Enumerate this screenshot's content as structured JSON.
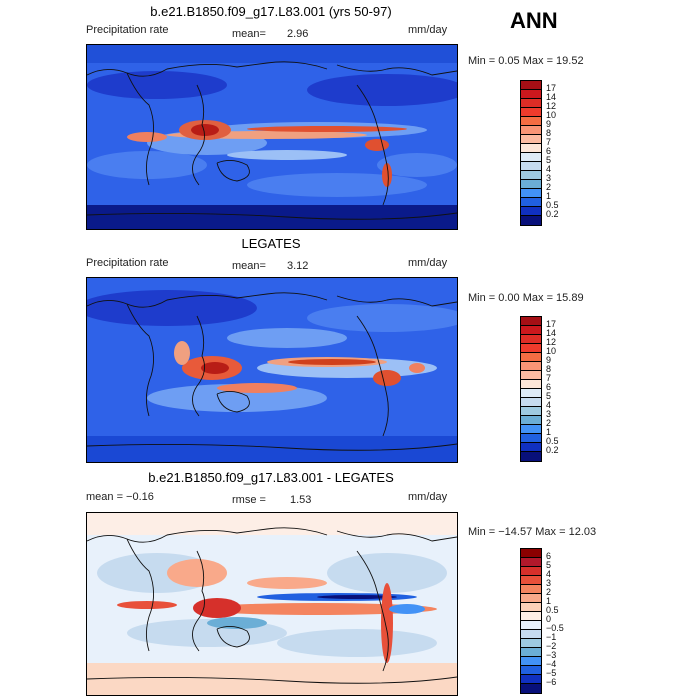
{
  "season": "ANN",
  "panels": [
    {
      "title": "b.e21.B1850.f09_g17.L83.001 (yrs 50-97)",
      "left_label": "Precipitation rate",
      "mean_label": "mean=",
      "mean_value": "2.96",
      "units": "mm/day",
      "stats": "Min =   0.05 Max =  19.52",
      "levels": [
        "17",
        "14",
        "12",
        "10",
        "9",
        "8",
        "7",
        "6",
        "5",
        "4",
        "3",
        "2",
        "1",
        "0.5",
        "0.2"
      ],
      "colors": [
        "#a50f15",
        "#cb181d",
        "#de2d26",
        "#ef3b2c",
        "#f46d43",
        "#f99576",
        "#fcbba1",
        "#fde6d8",
        "#deebf7",
        "#c6dbef",
        "#9ecae1",
        "#6baed6",
        "#4292f6",
        "#2060e0",
        "#1030c0",
        "#08107a"
      ]
    },
    {
      "title": "LEGATES",
      "left_label": "Precipitation rate",
      "mean_label": "mean=",
      "mean_value": "3.12",
      "units": "mm/day",
      "stats": "Min =   0.00 Max =  15.89",
      "levels": [
        "17",
        "14",
        "12",
        "10",
        "9",
        "8",
        "7",
        "6",
        "5",
        "4",
        "3",
        "2",
        "1",
        "0.5",
        "0.2"
      ],
      "colors": [
        "#a50f15",
        "#cb181d",
        "#de2d26",
        "#ef3b2c",
        "#f46d43",
        "#f99576",
        "#fcbba1",
        "#fde6d8",
        "#deebf7",
        "#c6dbef",
        "#9ecae1",
        "#6baed6",
        "#4292f6",
        "#2060e0",
        "#1030c0",
        "#08107a"
      ]
    },
    {
      "title": "b.e21.B1850.f09_g17.L83.001 - LEGATES",
      "left_label": "mean =  −0.16",
      "mean_label": "rmse =",
      "mean_value": "1.53",
      "units": "mm/day",
      "stats": "Min = −14.57 Max =  12.03",
      "levels": [
        "6",
        "5",
        "4",
        "3",
        "2",
        "1",
        "0.5",
        "0",
        "−0.5",
        "−1",
        "−2",
        "−3",
        "−4",
        "−5",
        "−6"
      ],
      "colors": [
        "#8b0000",
        "#b2182b",
        "#d6302b",
        "#e8503a",
        "#f4845f",
        "#f9a98a",
        "#fcd0b8",
        "#fdeee6",
        "#e8f1fb",
        "#c6dbef",
        "#9ecae1",
        "#6baed6",
        "#4292f6",
        "#2060e0",
        "#1030c0",
        "#08107a"
      ]
    }
  ]
}
